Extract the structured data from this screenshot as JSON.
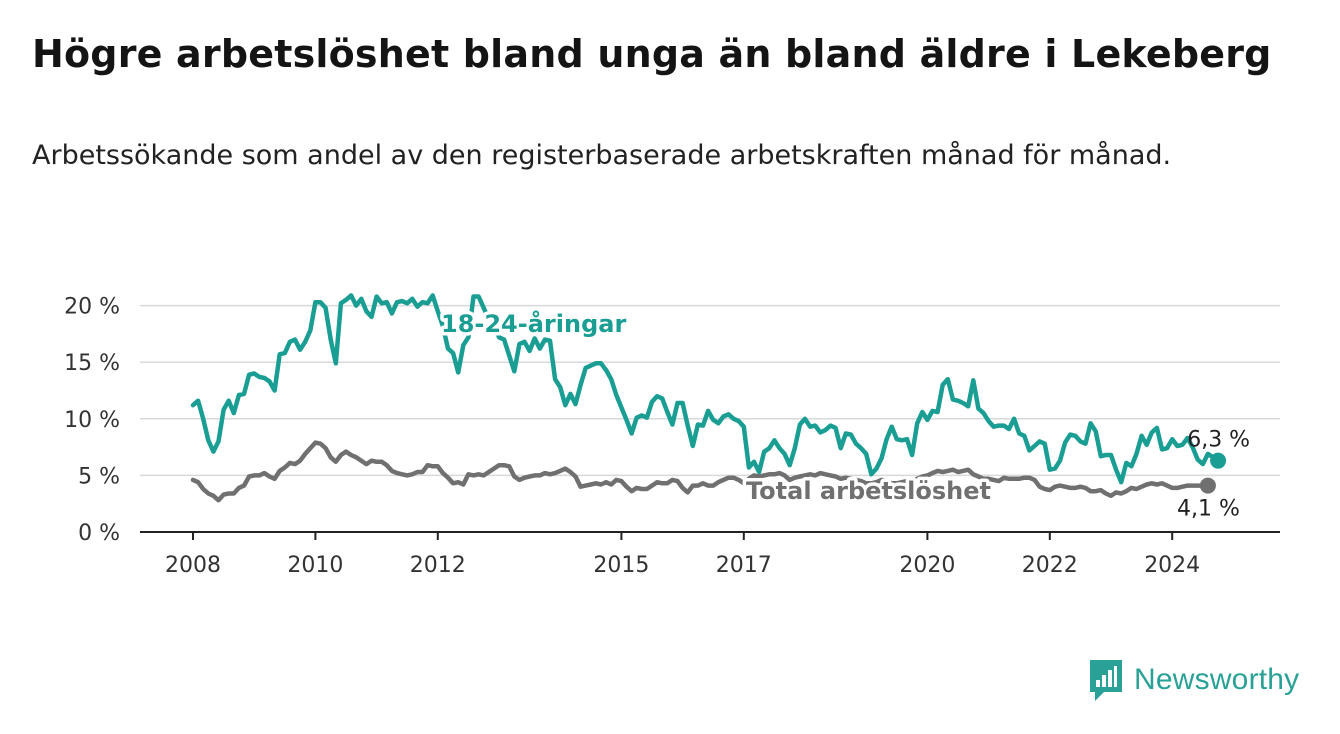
{
  "title": "Högre arbetslöshet bland unga än bland äldre i Lekeberg",
  "subtitle": "Arbetssökande som andel av den registerbaserade arbetskraften månad för månad.",
  "brand": {
    "name": "Newsworthy",
    "icon": "newsworthy-logo-icon",
    "color": "#2aa196"
  },
  "chart_data": {
    "type": "line",
    "x_start": "2008-01",
    "x_end": "2024-10",
    "x_ticks": [
      2008,
      2010,
      2012,
      2015,
      2017,
      2020,
      2022,
      2024
    ],
    "y_ticks": [
      "0 %",
      "5 %",
      "10 %",
      "15 %",
      "20 %"
    ],
    "ylim": [
      0,
      21
    ],
    "grid": true,
    "series": [
      {
        "name": "18-24-åringar",
        "color": "#1a9e94",
        "end_label": "6,3 %",
        "values": [
          11.2,
          11.6,
          10.0,
          8.1,
          7.1,
          8.0,
          10.8,
          11.6,
          10.5,
          12.1,
          12.2,
          13.9,
          14.0,
          13.7,
          13.6,
          13.3,
          12.5,
          15.7,
          15.8,
          16.8,
          17.0,
          16.1,
          16.8,
          17.8,
          20.3,
          20.3,
          19.8,
          17.0,
          14.9,
          20.2,
          20.5,
          20.9,
          20.0,
          20.6,
          19.5,
          19.0,
          20.8,
          20.2,
          20.3,
          19.3,
          20.3,
          20.4,
          20.2,
          20.6,
          19.9,
          20.3,
          20.2,
          20.9,
          19.5,
          18.2,
          16.2,
          15.8,
          14.1,
          16.5,
          17.2,
          20.8,
          20.8,
          19.8,
          18.8,
          18.5,
          17.2,
          17.0,
          15.6,
          14.2,
          16.6,
          16.8,
          16.0,
          17.1,
          16.2,
          17.0,
          16.9,
          13.5,
          12.8,
          11.2,
          12.2,
          11.3,
          13.0,
          14.5,
          14.7,
          14.9,
          14.9,
          14.3,
          13.5,
          12.1,
          11.0,
          9.9,
          8.7,
          10.1,
          10.3,
          10.1,
          11.5,
          12.0,
          11.8,
          10.6,
          9.5,
          11.4,
          11.4,
          9.4,
          7.6,
          9.5,
          9.4,
          10.7,
          9.9,
          9.6,
          10.2,
          10.4,
          10.0,
          9.8,
          9.3,
          5.7,
          6.2,
          5.3,
          7.1,
          7.4,
          8.1,
          7.4,
          6.9,
          5.9,
          7.4,
          9.5,
          10.0,
          9.3,
          9.4,
          8.8,
          9.0,
          9.4,
          9.2,
          7.4,
          8.7,
          8.6,
          7.8,
          7.4,
          6.9,
          5.1,
          5.6,
          6.5,
          8.2,
          9.3,
          8.2,
          8.1,
          8.2,
          6.8,
          9.6,
          10.6,
          9.9,
          10.7,
          10.6,
          13.0,
          13.5,
          11.7,
          11.6,
          11.4,
          11.1,
          13.4,
          10.9,
          10.5,
          9.8,
          9.3,
          9.4,
          9.4,
          9.1,
          10.0,
          8.7,
          8.5,
          7.2,
          7.6,
          8.0,
          7.8,
          5.5,
          5.6,
          6.3,
          7.9,
          8.6,
          8.5,
          8.0,
          7.8,
          9.6,
          8.9,
          6.7,
          6.8,
          6.8,
          5.5,
          4.4,
          6.1,
          5.8,
          6.9,
          8.5,
          7.7,
          8.8,
          9.2,
          7.3,
          7.4,
          8.2,
          7.6,
          7.7,
          8.3,
          7.5,
          6.4,
          6.0,
          6.9,
          6.6,
          6.3
        ]
      },
      {
        "name": "Total arbetslöshet",
        "color": "#707070",
        "end_label": "4,1 %",
        "values": [
          4.6,
          4.4,
          3.8,
          3.4,
          3.2,
          2.8,
          3.3,
          3.4,
          3.4,
          3.9,
          4.1,
          4.9,
          5.0,
          5.0,
          5.2,
          4.9,
          4.7,
          5.4,
          5.7,
          6.1,
          6.0,
          6.3,
          6.9,
          7.4,
          7.9,
          7.8,
          7.4,
          6.6,
          6.2,
          6.8,
          7.1,
          6.8,
          6.6,
          6.3,
          6.0,
          6.3,
          6.2,
          6.2,
          5.9,
          5.4,
          5.2,
          5.1,
          5.0,
          5.1,
          5.3,
          5.3,
          5.9,
          5.8,
          5.8,
          5.2,
          4.8,
          4.3,
          4.4,
          4.2,
          5.1,
          5.0,
          5.1,
          5.0,
          5.3,
          5.6,
          5.9,
          5.9,
          5.8,
          4.9,
          4.6,
          4.8,
          4.9,
          5.0,
          5.0,
          5.2,
          5.1,
          5.2,
          5.4,
          5.6,
          5.3,
          4.9,
          4.0,
          4.1,
          4.2,
          4.3,
          4.2,
          4.4,
          4.2,
          4.6,
          4.5,
          4.0,
          3.6,
          3.9,
          3.8,
          3.8,
          4.1,
          4.4,
          4.3,
          4.3,
          4.6,
          4.5,
          3.9,
          3.5,
          4.1,
          4.1,
          4.3,
          4.1,
          4.1,
          4.4,
          4.6,
          4.8,
          4.8,
          4.6,
          4.3,
          4.7,
          5.0,
          4.9,
          5.0,
          5.1,
          5.1,
          5.2,
          5.0,
          4.6,
          4.8,
          4.9,
          5.0,
          5.1,
          5.0,
          5.2,
          5.1,
          5.0,
          4.9,
          4.7,
          4.8,
          4.7,
          4.6,
          4.5,
          4.3,
          4.3,
          4.4,
          4.6,
          4.5,
          4.3,
          4.3,
          4.4,
          4.5,
          4.6,
          4.7,
          4.9,
          5.0,
          5.2,
          5.4,
          5.3,
          5.4,
          5.5,
          5.3,
          5.4,
          5.5,
          5.1,
          4.9,
          4.7,
          4.7,
          4.6,
          4.5,
          4.8,
          4.7,
          4.7,
          4.7,
          4.8,
          4.8,
          4.6,
          4.0,
          3.8,
          3.7,
          4.0,
          4.1,
          4.0,
          3.9,
          3.9,
          4.0,
          3.9,
          3.6,
          3.6,
          3.7,
          3.4,
          3.2,
          3.5,
          3.4,
          3.6,
          3.9,
          3.8,
          4.0,
          4.2,
          4.3,
          4.2,
          4.3,
          4.1,
          3.9,
          3.9,
          4.0,
          4.1,
          4.1,
          4.1,
          4.1,
          4.1
        ]
      }
    ]
  }
}
